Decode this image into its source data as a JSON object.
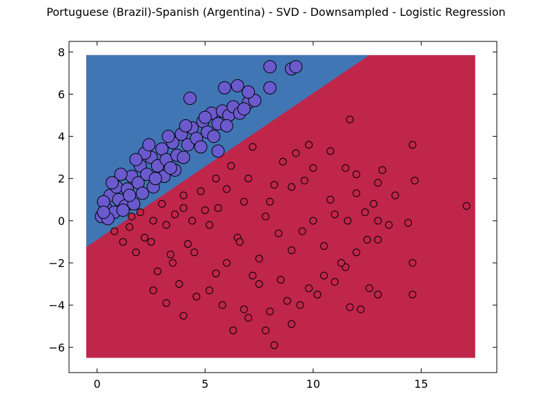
{
  "chart_data": {
    "type": "scatter",
    "title": "Portuguese (Brazil)-Spanish (Argentina) - SVD - Downsampled - Logistic Regression",
    "xlabel": "",
    "ylabel": "",
    "xlim": [
      -1.3,
      18.5
    ],
    "ylim": [
      -7.2,
      8.5
    ],
    "xticks": [
      0,
      5,
      10,
      15
    ],
    "yticks": [
      -6,
      -4,
      -2,
      0,
      2,
      4,
      6,
      8
    ],
    "grid": false,
    "legend": "none",
    "decision_region": {
      "x_range": [
        -0.5,
        17.5
      ],
      "y_range": [
        -6.5,
        7.85
      ],
      "boundary_points": [
        [
          -0.5,
          -1.25
        ],
        [
          12.6,
          7.85
        ]
      ],
      "upper_color": "#4076b4",
      "lower_color": "#c0254a"
    },
    "series": [
      {
        "color": "#6a5acd",
        "marker_size": "large",
        "points": [
          [
            0.2,
            0.2
          ],
          [
            0.4,
            0.6
          ],
          [
            0.6,
            1.2
          ],
          [
            0.3,
            0.9
          ],
          [
            0.8,
            0.4
          ],
          [
            1.0,
            1.0
          ],
          [
            1.3,
            0.7
          ],
          [
            0.9,
            1.6
          ],
          [
            1.4,
            1.5
          ],
          [
            1.6,
            2.1
          ],
          [
            1.9,
            1.8
          ],
          [
            2.0,
            2.6
          ],
          [
            2.3,
            2.2
          ],
          [
            2.5,
            3.0
          ],
          [
            2.8,
            2.6
          ],
          [
            3.0,
            3.4
          ],
          [
            3.2,
            2.9
          ],
          [
            3.5,
            3.7
          ],
          [
            3.7,
            3.1
          ],
          [
            3.9,
            4.1
          ],
          [
            4.2,
            3.6
          ],
          [
            4.4,
            4.4
          ],
          [
            4.6,
            3.9
          ],
          [
            4.9,
            4.7
          ],
          [
            5.1,
            4.2
          ],
          [
            5.3,
            5.1
          ],
          [
            5.6,
            4.6
          ],
          [
            5.8,
            5.2
          ],
          [
            6.1,
            5.0
          ],
          [
            6.3,
            5.4
          ],
          [
            6.6,
            5.1
          ],
          [
            7.0,
            5.6
          ],
          [
            7.3,
            5.7
          ],
          [
            5.9,
            6.3
          ],
          [
            6.5,
            6.4
          ],
          [
            7.0,
            6.1
          ],
          [
            8.0,
            6.3
          ],
          [
            8.0,
            7.3
          ],
          [
            9.0,
            7.2
          ],
          [
            9.2,
            7.3
          ],
          [
            4.3,
            5.8
          ],
          [
            5.6,
            3.3
          ],
          [
            3.1,
            2.1
          ],
          [
            2.1,
            1.3
          ],
          [
            1.2,
            0.5
          ],
          [
            0.5,
            0.1
          ],
          [
            1.7,
            0.8
          ],
          [
            2.6,
            1.6
          ],
          [
            3.6,
            2.4
          ],
          [
            4.0,
            3.0
          ],
          [
            4.8,
            3.5
          ],
          [
            5.4,
            4.0
          ],
          [
            6.0,
            4.5
          ],
          [
            2.2,
            3.2
          ],
          [
            3.3,
            4.0
          ],
          [
            4.1,
            4.5
          ],
          [
            1.1,
            2.2
          ],
          [
            0.7,
            1.8
          ],
          [
            1.8,
            2.9
          ],
          [
            2.4,
            3.6
          ],
          [
            5.0,
            4.9
          ],
          [
            6.8,
            5.3
          ],
          [
            3.4,
            2.5
          ],
          [
            2.7,
            2.0
          ],
          [
            1.5,
            1.2
          ],
          [
            0.3,
            0.4
          ]
        ]
      },
      {
        "color": "#c0254a",
        "marker_size": "small",
        "points": [
          [
            1.5,
            -0.3
          ],
          [
            2.0,
            0.4
          ],
          [
            2.5,
            -1.0
          ],
          [
            3.0,
            0.8
          ],
          [
            3.5,
            -2.0
          ],
          [
            4.0,
            1.2
          ],
          [
            4.5,
            -1.5
          ],
          [
            5.0,
            0.5
          ],
          [
            5.5,
            -2.5
          ],
          [
            6.0,
            1.5
          ],
          [
            6.5,
            -0.8
          ],
          [
            7.0,
            2.0
          ],
          [
            7.5,
            -1.8
          ],
          [
            8.0,
            0.9
          ],
          [
            8.5,
            -2.8
          ],
          [
            9.0,
            1.6
          ],
          [
            9.5,
            -0.5
          ],
          [
            10.0,
            2.5
          ],
          [
            10.5,
            -1.2
          ],
          [
            11.0,
            0.3
          ],
          [
            11.5,
            -2.2
          ],
          [
            12.0,
            1.3
          ],
          [
            12.5,
            -0.9
          ],
          [
            13.0,
            1.8
          ],
          [
            13.2,
            2.4
          ],
          [
            14.4,
            -0.1
          ],
          [
            14.6,
            -2.0
          ],
          [
            14.6,
            -3.5
          ],
          [
            14.6,
            3.6
          ],
          [
            14.7,
            1.9
          ],
          [
            17.1,
            0.7
          ],
          [
            11.7,
            4.8
          ],
          [
            13.8,
            1.2
          ],
          [
            12.6,
            -3.2
          ],
          [
            13.0,
            -3.5
          ],
          [
            12.2,
            -4.2
          ],
          [
            11.7,
            -4.1
          ],
          [
            9.0,
            -4.9
          ],
          [
            8.2,
            -5.9
          ],
          [
            7.8,
            -5.2
          ],
          [
            6.3,
            -5.2
          ],
          [
            4.0,
            -4.5
          ],
          [
            2.6,
            -3.3
          ],
          [
            3.2,
            -3.9
          ],
          [
            5.2,
            -3.3
          ],
          [
            6.8,
            -4.2
          ],
          [
            7.5,
            -3.0
          ],
          [
            8.8,
            -3.8
          ],
          [
            9.8,
            -3.2
          ],
          [
            10.5,
            -2.6
          ],
          [
            11.3,
            -2.0
          ],
          [
            12.0,
            -1.5
          ],
          [
            13.0,
            -0.9
          ],
          [
            12.8,
            0.8
          ],
          [
            11.5,
            2.5
          ],
          [
            10.8,
            3.3
          ],
          [
            9.8,
            3.6
          ],
          [
            9.2,
            3.2
          ],
          [
            8.6,
            2.8
          ],
          [
            7.2,
            3.5
          ],
          [
            6.2,
            2.6
          ],
          [
            5.5,
            2.0
          ],
          [
            4.8,
            1.4
          ],
          [
            4.0,
            0.6
          ],
          [
            3.2,
            -0.2
          ],
          [
            2.2,
            -0.8
          ],
          [
            1.2,
            -1.0
          ],
          [
            0.8,
            -0.5
          ],
          [
            1.8,
            -1.5
          ],
          [
            2.8,
            -2.4
          ],
          [
            3.8,
            -3.0
          ],
          [
            4.6,
            -3.6
          ],
          [
            5.8,
            -4.0
          ],
          [
            7.0,
            -4.6
          ],
          [
            8.0,
            -4.3
          ],
          [
            9.4,
            -4.0
          ],
          [
            10.2,
            -3.5
          ],
          [
            11.0,
            -2.9
          ],
          [
            6.6,
            -1.0
          ],
          [
            7.8,
            0.2
          ],
          [
            8.4,
            -0.6
          ],
          [
            5.2,
            -0.2
          ],
          [
            4.2,
            -1.1
          ],
          [
            3.4,
            -1.6
          ],
          [
            6.0,
            -2.0
          ],
          [
            7.2,
            -2.6
          ],
          [
            9.0,
            -1.4
          ],
          [
            10.0,
            0.0
          ],
          [
            10.8,
            1.0
          ],
          [
            9.6,
            1.9
          ],
          [
            8.2,
            1.7
          ],
          [
            6.8,
            0.9
          ],
          [
            5.6,
            0.6
          ],
          [
            4.4,
            0.0
          ],
          [
            3.6,
            0.3
          ],
          [
            2.6,
            0.0
          ],
          [
            1.6,
            0.2
          ],
          [
            11.6,
            0.0
          ],
          [
            12.4,
            0.4
          ],
          [
            13.5,
            -0.2
          ],
          [
            12.0,
            2.2
          ],
          [
            13.0,
            0.0
          ]
        ]
      }
    ]
  }
}
